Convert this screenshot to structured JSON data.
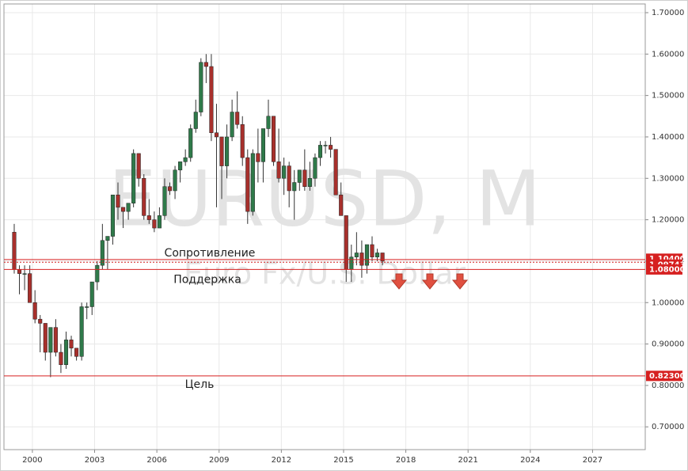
{
  "chart_data": {
    "type": "candlestick",
    "title": "EURUSD, M",
    "subtitle": "Euro Fx/U.S. Dollar",
    "up_color": "#2f7a4a",
    "down_color": "#a8302c",
    "level_color": "#d62020",
    "grid": true,
    "xlim": [
      1998.63,
      2029.54
    ],
    "xticks": [
      2000,
      2003,
      2006,
      2009,
      2012,
      2015,
      2018,
      2021,
      2024,
      2027
    ],
    "ylim": [
      0.645,
      1.721
    ],
    "yticks": [
      {
        "value": 0.7,
        "label": "0.70000"
      },
      {
        "value": 0.8,
        "label": "0.80000"
      },
      {
        "value": 0.9,
        "label": "0.90000"
      },
      {
        "value": 1.0,
        "label": "1.00000"
      },
      {
        "value": 1.1,
        "label": "1.10000"
      },
      {
        "value": 1.2,
        "label": "1.20000"
      },
      {
        "value": 1.3,
        "label": "1.30000"
      },
      {
        "value": 1.4,
        "label": "1.40000"
      },
      {
        "value": 1.5,
        "label": "1.50000"
      },
      {
        "value": 1.6,
        "label": "1.60000"
      },
      {
        "value": 1.7,
        "label": "1.70000"
      }
    ],
    "x": [
      1999.0,
      1999.25,
      1999.5,
      1999.75,
      2000.0,
      2000.25,
      2000.5,
      2000.75,
      2001.0,
      2001.25,
      2001.5,
      2001.75,
      2002.0,
      2002.25,
      2002.5,
      2002.75,
      2003.0,
      2003.25,
      2003.5,
      2003.75,
      2004.0,
      2004.25,
      2004.5,
      2004.75,
      2005.0,
      2005.25,
      2005.5,
      2005.75,
      2006.0,
      2006.25,
      2006.5,
      2006.75,
      2007.0,
      2007.25,
      2007.5,
      2007.75,
      2008.0,
      2008.25,
      2008.5,
      2008.75,
      2009.0,
      2009.25,
      2009.5,
      2009.75,
      2010.0,
      2010.25,
      2010.5,
      2010.75,
      2011.0,
      2011.25,
      2011.5,
      2011.75,
      2012.0,
      2012.25,
      2012.5,
      2012.75,
      2013.0,
      2013.25,
      2013.5,
      2013.75,
      2014.0,
      2014.25,
      2014.5,
      2014.75,
      2015.0,
      2015.25,
      2015.5,
      2015.75,
      2016.0,
      2016.25,
      2016.5,
      2016.75
    ],
    "open": [
      1.17,
      1.08,
      1.07,
      1.07,
      1.0,
      0.96,
      0.95,
      0.88,
      0.94,
      0.88,
      0.85,
      0.91,
      0.89,
      0.87,
      0.99,
      0.99,
      1.05,
      1.09,
      1.15,
      1.16,
      1.26,
      1.23,
      1.22,
      1.24,
      1.36,
      1.3,
      1.21,
      1.2,
      1.18,
      1.21,
      1.28,
      1.27,
      1.32,
      1.34,
      1.35,
      1.42,
      1.46,
      1.58,
      1.57,
      1.41,
      1.4,
      1.33,
      1.4,
      1.46,
      1.43,
      1.35,
      1.22,
      1.36,
      1.34,
      1.42,
      1.45,
      1.34,
      1.3,
      1.33,
      1.27,
      1.29,
      1.32,
      1.28,
      1.3,
      1.35,
      1.38,
      1.38,
      1.37,
      1.26,
      1.21,
      1.08,
      1.11,
      1.12,
      1.09,
      1.14,
      1.11,
      1.12
    ],
    "high": [
      1.19,
      1.09,
      1.09,
      1.09,
      1.03,
      0.97,
      0.95,
      0.94,
      0.96,
      0.9,
      0.93,
      0.92,
      0.89,
      1.0,
      1.0,
      1.05,
      1.1,
      1.19,
      1.16,
      1.26,
      1.29,
      1.23,
      1.24,
      1.37,
      1.36,
      1.31,
      1.25,
      1.22,
      1.23,
      1.3,
      1.29,
      1.33,
      1.34,
      1.37,
      1.43,
      1.49,
      1.59,
      1.6,
      1.6,
      1.48,
      1.4,
      1.43,
      1.49,
      1.51,
      1.45,
      1.37,
      1.37,
      1.42,
      1.42,
      1.49,
      1.45,
      1.42,
      1.35,
      1.34,
      1.32,
      1.32,
      1.37,
      1.34,
      1.36,
      1.39,
      1.39,
      1.4,
      1.37,
      1.29,
      1.21,
      1.14,
      1.17,
      1.15,
      1.14,
      1.16,
      1.13,
      1.12
    ],
    "low": [
      1.07,
      1.02,
      1.03,
      1.0,
      0.95,
      0.88,
      0.86,
      0.82,
      0.87,
      0.83,
      0.84,
      0.87,
      0.86,
      0.86,
      0.96,
      0.97,
      1.03,
      1.08,
      1.08,
      1.14,
      1.2,
      1.18,
      1.2,
      1.23,
      1.28,
      1.2,
      1.19,
      1.17,
      1.18,
      1.2,
      1.26,
      1.25,
      1.29,
      1.33,
      1.34,
      1.41,
      1.45,
      1.53,
      1.39,
      1.23,
      1.25,
      1.3,
      1.39,
      1.42,
      1.33,
      1.19,
      1.21,
      1.29,
      1.29,
      1.4,
      1.33,
      1.29,
      1.26,
      1.23,
      1.2,
      1.27,
      1.27,
      1.27,
      1.28,
      1.33,
      1.36,
      1.35,
      1.26,
      1.21,
      1.05,
      1.05,
      1.09,
      1.06,
      1.07,
      1.1,
      1.1,
      1.09
    ],
    "close": [
      1.08,
      1.07,
      1.07,
      1.0,
      0.96,
      0.95,
      0.88,
      0.94,
      0.88,
      0.85,
      0.91,
      0.89,
      0.87,
      0.99,
      0.99,
      1.05,
      1.09,
      1.15,
      1.16,
      1.26,
      1.23,
      1.22,
      1.24,
      1.36,
      1.3,
      1.21,
      1.2,
      1.18,
      1.21,
      1.28,
      1.27,
      1.32,
      1.34,
      1.35,
      1.42,
      1.46,
      1.58,
      1.57,
      1.41,
      1.4,
      1.33,
      1.4,
      1.46,
      1.43,
      1.35,
      1.22,
      1.36,
      1.34,
      1.42,
      1.45,
      1.34,
      1.3,
      1.33,
      1.27,
      1.29,
      1.32,
      1.28,
      1.3,
      1.35,
      1.38,
      1.38,
      1.37,
      1.26,
      1.21,
      1.08,
      1.11,
      1.12,
      1.09,
      1.14,
      1.11,
      1.12,
      1.1
    ],
    "levels": [
      {
        "value": 1.104,
        "label": "1.10400",
        "text": "Сопротивление",
        "style": "solid"
      },
      {
        "value": 1.09743,
        "label": "1.09743",
        "style": "dotted"
      },
      {
        "value": 1.08,
        "label": "1.08000",
        "text": "Поддержка",
        "style": "solid"
      },
      {
        "value": 0.823,
        "label": "0.82300",
        "text": "Цель",
        "style": "solid"
      }
    ]
  }
}
